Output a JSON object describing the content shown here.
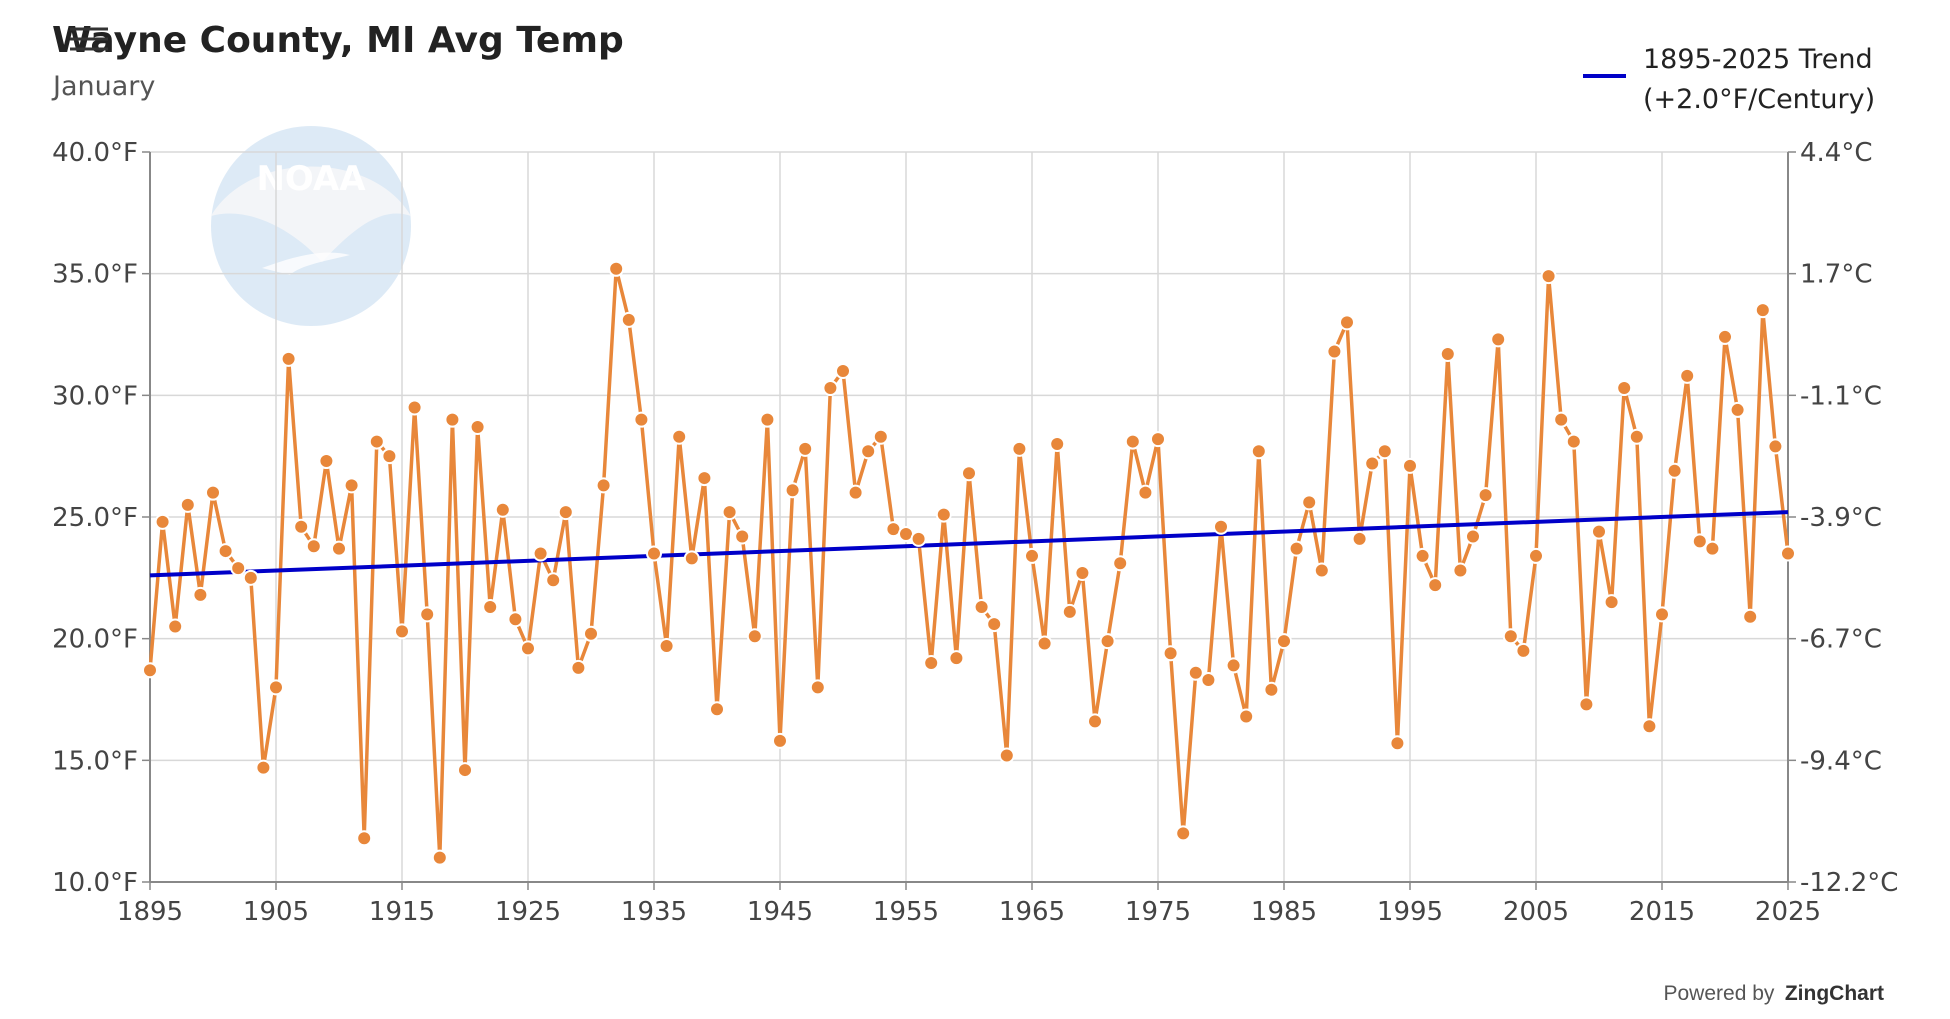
{
  "header": {
    "title": "Wayne County, MI Avg Temp",
    "subtitle": "January",
    "menu_icon": "hamburger-menu-icon"
  },
  "legend": {
    "line1": "1895-2025 Trend",
    "line2": "(+2.0°F/Century)",
    "placement": "top-right"
  },
  "credit": {
    "prefix": "Powered by",
    "brand": "ZingChart"
  },
  "watermark": {
    "text": "NOAA"
  },
  "colors": {
    "series": "#E8873A",
    "trend": "#0000C8",
    "grid": "#D8D8D8"
  },
  "chart_data": {
    "type": "line",
    "title": "Wayne County, MI Avg Temp",
    "subtitle": "January",
    "x_start": 1895,
    "x_end": 2025,
    "xlim": [
      1895,
      2025
    ],
    "ylim": [
      10,
      40
    ],
    "grid": true,
    "x_ticks": [
      "1895",
      "1905",
      "1915",
      "1925",
      "1935",
      "1945",
      "1955",
      "1965",
      "1975",
      "1985",
      "1995",
      "2005",
      "2015",
      "2025"
    ],
    "y_ticks_left": [
      "10.0°F",
      "15.0°F",
      "20.0°F",
      "25.0°F",
      "30.0°F",
      "35.0°F",
      "40.0°F"
    ],
    "y_ticks_right": [
      "-12.2°C",
      "-9.4°C",
      "-6.7°C",
      "-3.9°C",
      "-1.1°C",
      "1.7°C",
      "4.4°C"
    ],
    "series": [
      {
        "values": [
          18.7,
          24.8,
          20.5,
          25.5,
          21.8,
          26.0,
          23.6,
          22.9,
          22.5,
          14.7,
          18.0,
          31.5,
          24.6,
          23.8,
          27.3,
          23.7,
          26.3,
          11.8,
          28.1,
          27.5,
          20.3,
          29.5,
          21.0,
          11.0,
          29.0,
          14.6,
          28.7,
          21.3,
          25.3,
          20.8,
          19.6,
          23.5,
          22.4,
          25.2,
          18.8,
          20.2,
          26.3,
          35.2,
          33.1,
          29.0,
          23.5,
          19.7,
          28.3,
          23.3,
          26.6,
          17.1,
          25.2,
          24.2,
          20.1,
          29.0,
          15.8,
          26.1,
          27.8,
          18.0,
          30.3,
          31.0,
          26.0,
          27.7,
          28.3,
          24.5,
          24.3,
          24.1,
          19.0,
          25.1,
          19.2,
          26.8,
          21.3,
          20.6,
          15.2,
          27.8,
          23.4,
          19.8,
          28.0,
          21.1,
          22.7,
          16.6,
          19.9,
          23.1,
          28.1,
          26.0,
          28.2,
          19.4,
          12.0,
          18.6,
          18.3,
          24.6,
          18.9,
          16.8,
          27.7,
          17.9,
          19.9,
          23.7,
          25.6,
          22.8,
          31.8,
          33.0,
          24.1,
          27.2,
          27.7,
          15.7,
          27.1,
          23.4,
          22.2,
          31.7,
          22.8,
          24.2,
          25.9,
          32.3,
          20.1,
          19.5,
          23.4,
          34.9,
          29.0,
          28.1,
          17.3,
          24.4,
          21.5,
          30.3,
          28.3,
          16.4,
          21.0,
          26.9,
          30.8,
          24.0,
          23.7,
          32.4,
          29.4,
          20.9,
          33.5,
          27.9,
          23.5
        ]
      },
      {
        "name": "1895-2025 Trend",
        "type": "line",
        "x": [
          1895,
          2025
        ],
        "values": [
          22.6,
          25.2
        ]
      }
    ]
  }
}
